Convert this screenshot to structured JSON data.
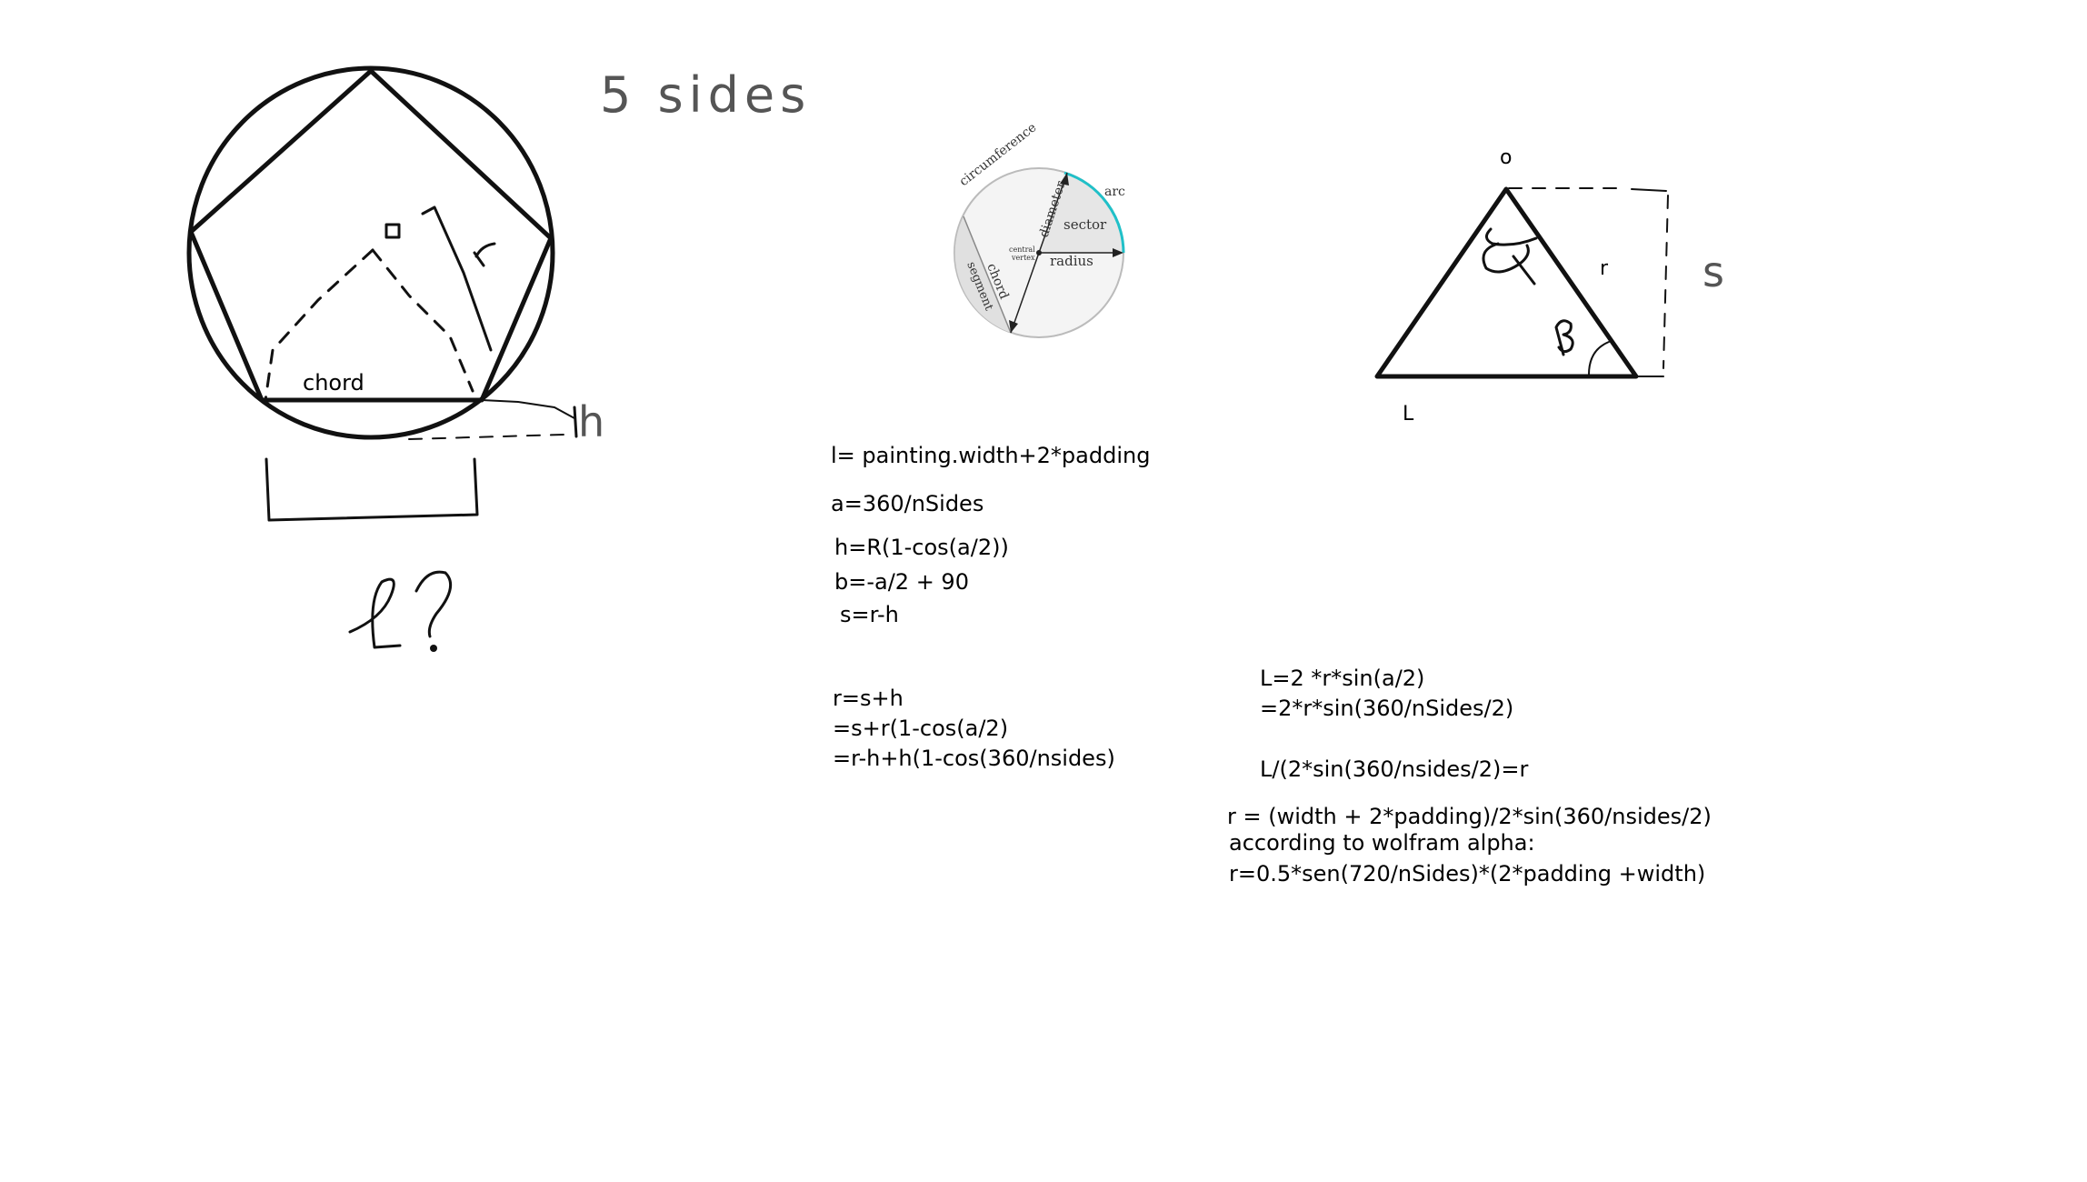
{
  "sketch_left": {
    "title": "5 sides",
    "center_label": "o",
    "radius_label": "r",
    "chord_label": "chord",
    "h_label": "h",
    "length_label": "l?"
  },
  "inset_circle": {
    "circumference": "circumference",
    "diameter": "diameter",
    "sector": "sector",
    "arc": "arc",
    "central_vertex": [
      "central",
      "vertex"
    ],
    "radius": "radius",
    "chord": "chord",
    "segment": "segment",
    "accent_color": "#20c0c8"
  },
  "triangle": {
    "top_label": "o",
    "alpha_label": "α",
    "r_label": "r",
    "s_label": "s",
    "beta_label": "β",
    "base_label": "L"
  },
  "formulas_middle": [
    "l= painting.width+2*padding",
    "a=360/nSides",
    "h=R(1-cos(a/2))",
    "b=-a/2 + 90",
    "s=r-h",
    "r=s+h",
    "=s+r(1-cos(a/2)",
    "=r-h+h(1-cos(360/nsides)"
  ],
  "formulas_right": [
    "L=2 *r*sin(a/2)",
    "=2*r*sin(360/nSides/2)",
    "L/(2*sin(360/nsides/2)=r",
    "r = (width + 2*padding)/2*sin(360/nsides/2)",
    "according to wolfram alpha:",
    "r=0.5*sen(720/nSides)*(2*padding +width)"
  ]
}
